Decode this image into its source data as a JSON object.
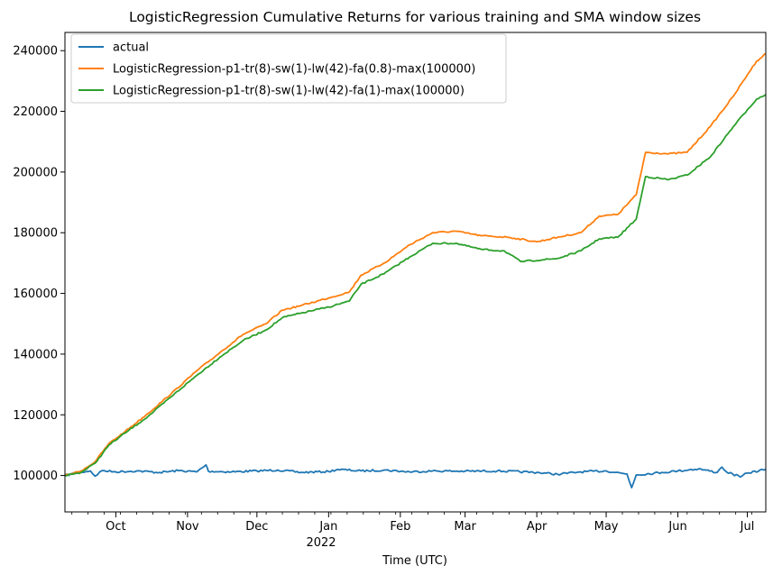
{
  "chart_data": {
    "type": "line",
    "title": "LogisticRegression Cumulative Returns for various training and SMA window sizes",
    "xlabel": "Time (UTC)",
    "ylabel": "",
    "xlim": [
      "2021-09-09",
      "2022-07-09"
    ],
    "ylim": [
      88000,
      246000
    ],
    "grid": false,
    "legend_position": "upper-left",
    "x_tick_labels": [
      "Oct",
      "Nov",
      "Dec",
      "Jan",
      "Feb",
      "Mar",
      "Apr",
      "May",
      "Jun",
      "Jul"
    ],
    "x_tick_dates": [
      "2021-10-01",
      "2021-11-01",
      "2021-12-01",
      "2022-01-01",
      "2022-02-01",
      "2022-03-01",
      "2022-04-01",
      "2022-05-01",
      "2022-06-01",
      "2022-07-01"
    ],
    "x_year_label": "2022",
    "y_ticks": [
      100000,
      120000,
      140000,
      160000,
      180000,
      200000,
      220000,
      240000
    ],
    "y_tick_labels": [
      "100000",
      "120000",
      "140000",
      "160000",
      "180000",
      "200000",
      "220000",
      "240000"
    ],
    "series": [
      {
        "name": "actual",
        "color": "#1f77b4",
        "points": [
          [
            "2021-09-09",
            100000
          ],
          [
            "2021-09-15",
            101000
          ],
          [
            "2021-09-20",
            101500
          ],
          [
            "2021-09-22",
            99800
          ],
          [
            "2021-09-25",
            101600
          ],
          [
            "2021-10-01",
            101200
          ],
          [
            "2021-10-10",
            101500
          ],
          [
            "2021-10-20",
            101000
          ],
          [
            "2021-10-28",
            101600
          ],
          [
            "2021-11-05",
            101200
          ],
          [
            "2021-11-09",
            103500
          ],
          [
            "2021-11-10",
            101400
          ],
          [
            "2021-11-20",
            101200
          ],
          [
            "2021-12-01",
            101500
          ],
          [
            "2021-12-10",
            101800
          ],
          [
            "2021-12-20",
            101000
          ],
          [
            "2022-01-01",
            101300
          ],
          [
            "2022-01-05",
            102000
          ],
          [
            "2022-01-15",
            101500
          ],
          [
            "2022-01-25",
            101800
          ],
          [
            "2022-02-05",
            101200
          ],
          [
            "2022-02-15",
            101500
          ],
          [
            "2022-03-01",
            101400
          ],
          [
            "2022-03-15",
            101500
          ],
          [
            "2022-04-01",
            101000
          ],
          [
            "2022-04-10",
            100400
          ],
          [
            "2022-04-20",
            101200
          ],
          [
            "2022-05-01",
            101500
          ],
          [
            "2022-05-10",
            100500
          ],
          [
            "2022-05-12",
            96000
          ],
          [
            "2022-05-14",
            100200
          ],
          [
            "2022-05-25",
            101000
          ],
          [
            "2022-06-01",
            101500
          ],
          [
            "2022-06-10",
            102200
          ],
          [
            "2022-06-18",
            101000
          ],
          [
            "2022-06-20",
            102800
          ],
          [
            "2022-06-22",
            101200
          ],
          [
            "2022-06-28",
            99500
          ],
          [
            "2022-07-01",
            100800
          ],
          [
            "2022-07-09",
            102000
          ]
        ]
      },
      {
        "name": "LogisticRegression-p1-tr(8)-sw(1)-lw(42)-fa(0.8)-max(100000)",
        "color": "#ff7f0e",
        "points": [
          [
            "2021-09-09",
            100000
          ],
          [
            "2021-09-16",
            101500
          ],
          [
            "2021-09-22",
            104500
          ],
          [
            "2021-09-28",
            110500
          ],
          [
            "2021-10-05",
            114500
          ],
          [
            "2021-10-15",
            120500
          ],
          [
            "2021-10-25",
            127000
          ],
          [
            "2021-11-05",
            134500
          ],
          [
            "2021-11-15",
            140500
          ],
          [
            "2021-11-25",
            146500
          ],
          [
            "2021-12-05",
            150000
          ],
          [
            "2021-12-12",
            154500
          ],
          [
            "2021-12-20",
            156000
          ],
          [
            "2022-01-01",
            158500
          ],
          [
            "2022-01-10",
            160500
          ],
          [
            "2022-01-15",
            166000
          ],
          [
            "2022-01-25",
            170000
          ],
          [
            "2022-02-05",
            176000
          ],
          [
            "2022-02-15",
            180000
          ],
          [
            "2022-02-25",
            180500
          ],
          [
            "2022-03-08",
            179000
          ],
          [
            "2022-03-20",
            178500
          ],
          [
            "2022-04-01",
            177000
          ],
          [
            "2022-04-10",
            178500
          ],
          [
            "2022-04-20",
            180000
          ],
          [
            "2022-04-28",
            185500
          ],
          [
            "2022-05-06",
            186000
          ],
          [
            "2022-05-14",
            192500
          ],
          [
            "2022-05-18",
            206500
          ],
          [
            "2022-05-28",
            206000
          ],
          [
            "2022-06-05",
            206500
          ],
          [
            "2022-06-15",
            215000
          ],
          [
            "2022-06-25",
            225000
          ],
          [
            "2022-07-01",
            232000
          ],
          [
            "2022-07-05",
            236500
          ],
          [
            "2022-07-09",
            239000
          ]
        ]
      },
      {
        "name": "LogisticRegression-p1-tr(8)-sw(1)-lw(42)-fa(1)-max(100000)",
        "color": "#2ca02c",
        "points": [
          [
            "2021-09-09",
            100000
          ],
          [
            "2021-09-16",
            101000
          ],
          [
            "2021-09-22",
            104000
          ],
          [
            "2021-09-28",
            110000
          ],
          [
            "2021-10-05",
            114000
          ],
          [
            "2021-10-15",
            119500
          ],
          [
            "2021-10-25",
            126000
          ],
          [
            "2021-11-05",
            133000
          ],
          [
            "2021-11-15",
            139000
          ],
          [
            "2021-11-25",
            144500
          ],
          [
            "2021-12-05",
            148000
          ],
          [
            "2021-12-12",
            152000
          ],
          [
            "2021-12-20",
            153500
          ],
          [
            "2022-01-01",
            155500
          ],
          [
            "2022-01-10",
            157500
          ],
          [
            "2022-01-15",
            163000
          ],
          [
            "2022-01-25",
            166500
          ],
          [
            "2022-02-05",
            172000
          ],
          [
            "2022-02-15",
            176500
          ],
          [
            "2022-02-25",
            176500
          ],
          [
            "2022-03-08",
            174500
          ],
          [
            "2022-03-18",
            174000
          ],
          [
            "2022-03-25",
            170500
          ],
          [
            "2022-04-10",
            171500
          ],
          [
            "2022-04-20",
            174000
          ],
          [
            "2022-04-28",
            178000
          ],
          [
            "2022-05-06",
            178500
          ],
          [
            "2022-05-14",
            184500
          ],
          [
            "2022-05-18",
            198500
          ],
          [
            "2022-05-28",
            197500
          ],
          [
            "2022-06-05",
            199000
          ],
          [
            "2022-06-15",
            205000
          ],
          [
            "2022-06-25",
            215000
          ],
          [
            "2022-07-01",
            220500
          ],
          [
            "2022-07-05",
            224000
          ],
          [
            "2022-07-09",
            225500
          ]
        ]
      }
    ]
  }
}
